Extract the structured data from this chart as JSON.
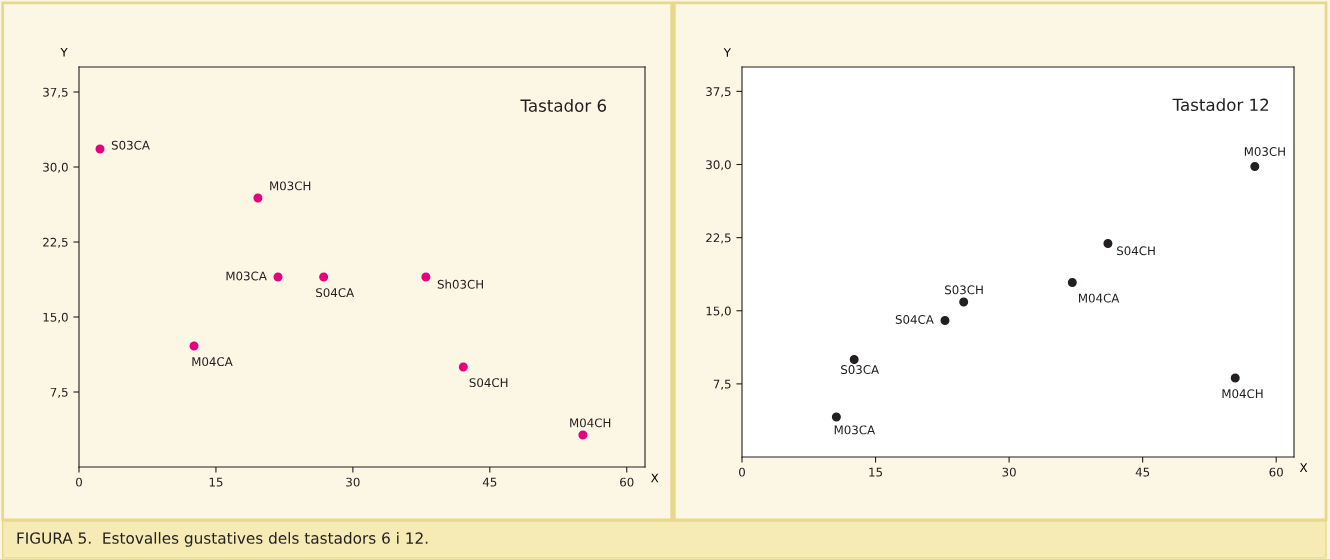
{
  "chart_data": [
    {
      "type": "scatter",
      "title": "Tastador 6",
      "xlabel": "X",
      "ylabel": "Y",
      "xlim": [
        0,
        62
      ],
      "ylim": [
        0,
        40
      ],
      "xticks": [
        0,
        15,
        30,
        45,
        60
      ],
      "yticks": [
        {
          "value": 7.5,
          "label": "7,5"
        },
        {
          "value": 15,
          "label": "15,0"
        },
        {
          "value": 22.5,
          "label": "22,5"
        },
        {
          "value": 30,
          "label": "30,0"
        },
        {
          "value": 37.5,
          "label": "37,5"
        }
      ],
      "grid": false,
      "legend": false,
      "marker": "circle",
      "series": [
        {
          "color": "#e6007e",
          "x": [
            2.3,
            19.6,
            21.8,
            26.8,
            38.0,
            12.6,
            42.1,
            55.2
          ],
          "values": [
            31.8,
            26.9,
            19.0,
            19.0,
            19.0,
            12.1,
            10.0,
            3.2
          ]
        }
      ],
      "annotations": [
        {
          "text": "S03CA",
          "x": 2.3,
          "y": 31.8
        },
        {
          "text": "M03CH",
          "x": 19.6,
          "y": 26.9
        },
        {
          "text": "M03CA",
          "x": 21.8,
          "y": 19.0
        },
        {
          "text": "S04CA",
          "x": 26.8,
          "y": 19.0
        },
        {
          "text": "Sh03CH",
          "x": 38.0,
          "y": 19.0
        },
        {
          "text": "M04CA",
          "x": 12.6,
          "y": 12.1
        },
        {
          "text": "S04CH",
          "x": 42.1,
          "y": 10.0
        },
        {
          "text": "M04CH",
          "x": 55.2,
          "y": 3.2
        },
        "FIGURA 5.  Estovalles gustatives dels tastadors 6 i 12."
      ]
    },
    {
      "type": "scatter",
      "title": "Tastador 12",
      "xlabel": "X",
      "ylabel": "Y",
      "xlim": [
        0,
        62
      ],
      "ylim": [
        0,
        40
      ],
      "xticks": [
        0,
        15,
        30,
        45,
        60
      ],
      "yticks": [
        {
          "value": 7.5,
          "label": "7,5"
        },
        {
          "value": 15,
          "label": "15,0"
        },
        {
          "value": 22.5,
          "label": "22,5"
        },
        {
          "value": 30,
          "label": "30,0"
        },
        {
          "value": 37.5,
          "label": "37,5"
        }
      ],
      "grid": false,
      "legend": false,
      "marker": "circle",
      "series": [
        {
          "color": "#231f20",
          "x": [
            57.6,
            41.1,
            37.1,
            24.9,
            22.8,
            12.6,
            55.4,
            10.6
          ],
          "values": [
            29.8,
            21.9,
            17.9,
            15.9,
            14.0,
            10.0,
            8.1,
            4.1
          ]
        }
      ],
      "annotations": [
        {
          "text": "M03CH",
          "x": 57.6,
          "y": 29.8
        },
        {
          "text": "S04CH",
          "x": 41.1,
          "y": 21.9
        },
        {
          "text": "M04CA",
          "x": 37.1,
          "y": 17.9
        },
        {
          "text": "S03CH",
          "x": 24.9,
          "y": 15.9
        },
        {
          "text": "S04CA",
          "x": 22.8,
          "y": 14.0
        },
        {
          "text": "S03CA",
          "x": 12.6,
          "y": 10.0
        },
        {
          "text": "M04CH",
          "x": 55.4,
          "y": 8.1
        },
        {
          "text": "M03CA",
          "x": 10.6,
          "y": 4.1
        }
      ]
    }
  ]
}
